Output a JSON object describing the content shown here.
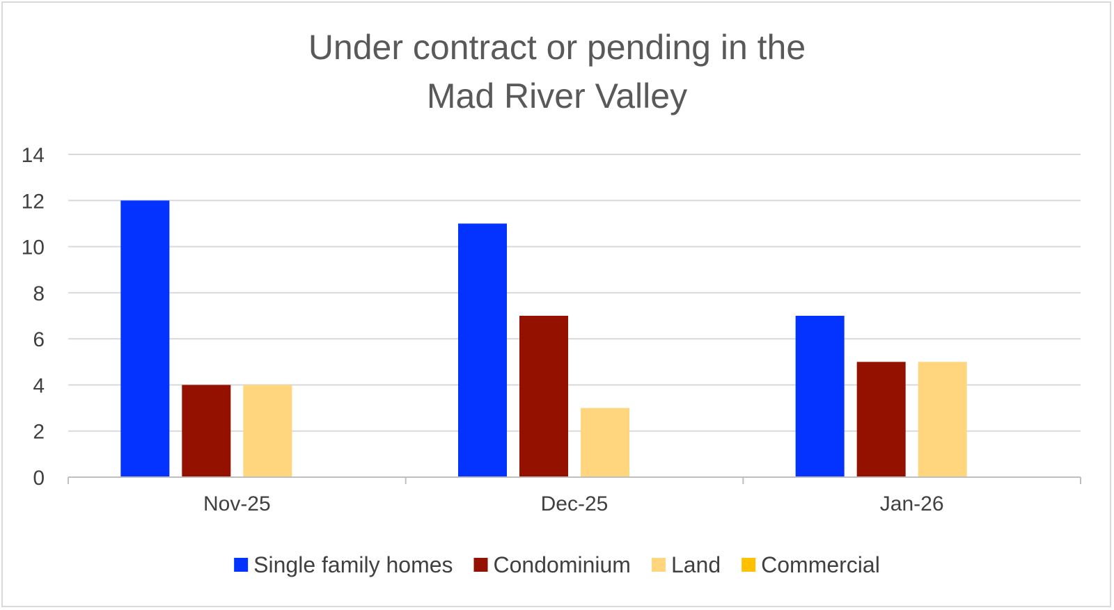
{
  "chart_data": {
    "type": "bar",
    "title_lines": [
      "Under contract or pending in the",
      "Mad River Valley"
    ],
    "categories": [
      "Nov-25",
      "Dec-25",
      "Jan-26"
    ],
    "series": [
      {
        "name": "Single family homes",
        "color": "#0433ff",
        "values": [
          12,
          11,
          7
        ]
      },
      {
        "name": "Condominium",
        "color": "#941100",
        "values": [
          4,
          7,
          5
        ]
      },
      {
        "name": "Land",
        "color": "#ffd57e",
        "values": [
          4,
          3,
          5
        ]
      },
      {
        "name": "Commercial",
        "color": "#ffc000",
        "values": [
          0,
          0,
          0
        ]
      }
    ],
    "ylim": [
      0,
      14
    ],
    "yticks": [
      0,
      2,
      4,
      6,
      8,
      10,
      12,
      14
    ],
    "xlabel": "",
    "ylabel": "",
    "grid": true,
    "legend_position": "bottom"
  }
}
